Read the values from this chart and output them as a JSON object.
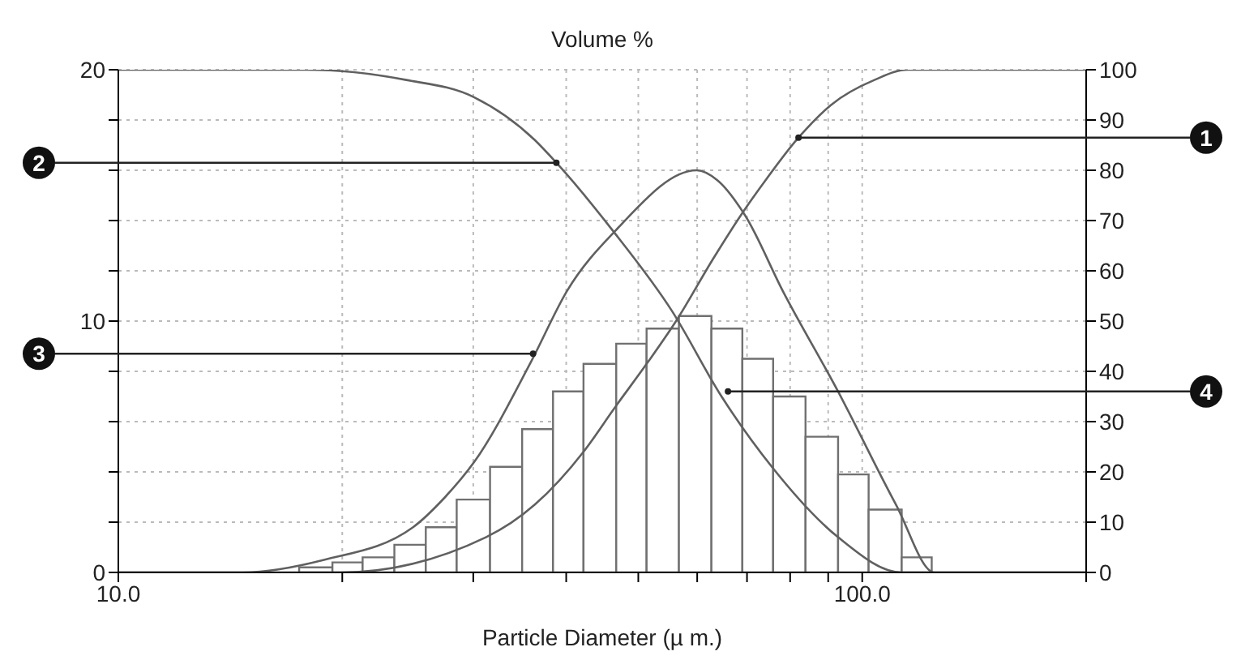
{
  "chart_data": {
    "type": "histogram",
    "title": "Volume %",
    "xlabel": "Particle Diameter (µ m.)",
    "log": "x",
    "grid": true,
    "xlim": [
      10,
      200
    ],
    "xticks": [
      {
        "value": 10,
        "label": "10.0"
      },
      {
        "value": 20,
        "label": null
      },
      {
        "value": 30,
        "label": null
      },
      {
        "value": 40,
        "label": null
      },
      {
        "value": 50,
        "label": null
      },
      {
        "value": 60,
        "label": null
      },
      {
        "value": 70,
        "label": null
      },
      {
        "value": 80,
        "label": null
      },
      {
        "value": 90,
        "label": null
      },
      {
        "value": 100,
        "label": "100.0"
      },
      {
        "value": 200,
        "label": null
      }
    ],
    "ylim": [
      0,
      20
    ],
    "yticks": [
      0,
      {
        "value": 2,
        "label": null
      },
      {
        "value": 4,
        "label": null
      },
      {
        "value": 6,
        "label": null
      },
      {
        "value": 8,
        "label": null
      },
      10,
      {
        "value": 12,
        "label": null
      },
      {
        "value": 14,
        "label": null
      },
      {
        "value": 16,
        "label": null
      },
      {
        "value": 18,
        "label": null
      },
      20
    ],
    "y2lim": [
      0,
      100
    ],
    "y2ticks": [
      0,
      10,
      20,
      30,
      40,
      50,
      60,
      70,
      80,
      90,
      100
    ],
    "series": [
      {
        "color": "#707070",
        "bins": [
          17.5,
          19.4,
          21.3,
          23.5,
          25.9,
          28.5,
          31.6,
          34.9,
          38.4,
          42.2,
          46.7,
          51.3,
          56.7,
          62.7,
          69.0,
          75.9,
          83.9,
          92.8,
          102,
          113,
          124
        ],
        "values": [
          0.2,
          0.4,
          0.6,
          1.1,
          1.8,
          2.9,
          4.2,
          5.7,
          7.2,
          8.3,
          9.1,
          9.7,
          10.2,
          9.7,
          8.5,
          7.0,
          5.4,
          3.9,
          2.5,
          0.6
        ]
      },
      {
        "type": "line",
        "axis": "y2",
        "color": "#606060",
        "x": [
          10,
          17.5,
          19.9,
          31.2,
          36.3,
          42.2,
          46.6,
          51.6,
          56.2,
          63.1,
          69.0,
          73.3,
          82.1,
          90.8,
          104,
          115,
          200
        ],
        "values": [
          0,
          0,
          0,
          7,
          13.5,
          24,
          33,
          42,
          50,
          62.5,
          71.5,
          77,
          86.5,
          93,
          98,
          100,
          100
        ]
      },
      {
        "type": "line",
        "axis": "y2",
        "color": "#606060",
        "x": [
          10,
          17.9,
          24.3,
          30.1,
          36.3,
          38.8,
          46.2,
          55.5,
          64.7,
          75.6,
          92.8,
          113,
          200
        ],
        "values": [
          100,
          100,
          98,
          94.5,
          86,
          81.5,
          68,
          52,
          35,
          21,
          7,
          0,
          0
        ]
      },
      {
        "type": "line",
        "axis": "y2",
        "color": "#606060",
        "x": [
          10,
          14.7,
          18.9,
          24.9,
          27.5,
          30.1,
          35.9,
          40.1,
          46.6,
          59.9,
          63.9,
          69.6,
          78.2,
          92.8,
          111,
          125,
          200
        ],
        "values": [
          0,
          0,
          2.5,
          9,
          15,
          22,
          42,
          56,
          68,
          80,
          78,
          71,
          56,
          36,
          13.5,
          0,
          0
        ]
      }
    ],
    "annotations": [
      {
        "text": "1",
        "x": 82.1,
        "y": 17.3
      },
      {
        "text": "2",
        "x": 38.8,
        "y": 16.3
      },
      {
        "text": "3",
        "x": 36.1,
        "y": 8.7
      },
      {
        "text": "4",
        "x": 66,
        "y": 7.2
      }
    ]
  }
}
